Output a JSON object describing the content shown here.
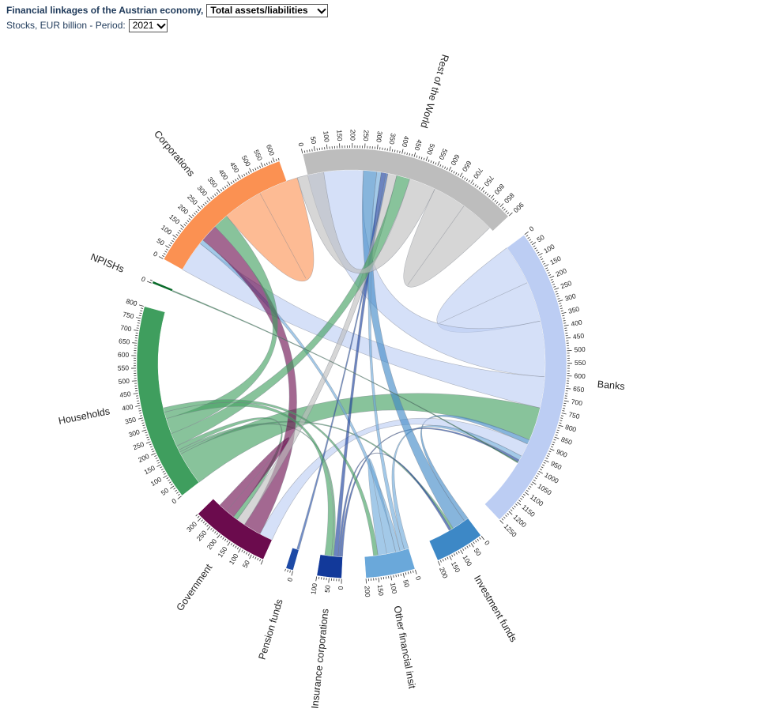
{
  "controls": {
    "title": "Financial linkages of the Austrian economy,",
    "metric_selected": "Total assets/liabilities",
    "subtitle": "Stocks, EUR billion - Period:",
    "period_selected": "2021"
  },
  "chart_data": {
    "type": "chord",
    "unit": "EUR billion",
    "sectors": [
      {
        "name": "Banks",
        "total": 1250,
        "color": "#bccdf3",
        "ticks": [
          0,
          50,
          100,
          150,
          200,
          250,
          300,
          350,
          400,
          450,
          500,
          550,
          600,
          650,
          700,
          750,
          800,
          850,
          900,
          950,
          1000,
          1050,
          1100,
          1150,
          1200,
          1250
        ]
      },
      {
        "name": "Investment funds",
        "total": 200,
        "color": "#3d88c6",
        "ticks": [
          0,
          50,
          100,
          150,
          200
        ]
      },
      {
        "name": "Other financial insit",
        "total": 200,
        "color": "#6aa8da",
        "ticks": [
          0,
          50,
          100,
          150,
          200
        ]
      },
      {
        "name": "Insurance corporations",
        "total": 100,
        "color": "#12399a",
        "ticks": [
          0,
          50,
          100
        ]
      },
      {
        "name": "Pension funds",
        "total": 30,
        "color": "#1d4aa6",
        "ticks": [
          0
        ]
      },
      {
        "name": "Government",
        "total": 320,
        "color": "#6b0b4d",
        "ticks": [
          50,
          100,
          150,
          200,
          250,
          300
        ]
      },
      {
        "name": "Households",
        "total": 800,
        "color": "#3f9e5e",
        "ticks": [
          0,
          50,
          100,
          150,
          200,
          250,
          300,
          350,
          400,
          450,
          500,
          550,
          600,
          650,
          700,
          750,
          800
        ]
      },
      {
        "name": "NPISHs",
        "total": 10,
        "color": "#0a6b2a",
        "ticks": [
          0
        ]
      },
      {
        "name": "Corporations",
        "total": 620,
        "color": "#fb9152",
        "ticks": [
          0,
          50,
          100,
          150,
          200,
          250,
          300,
          350,
          400,
          450,
          500,
          550,
          600
        ]
      },
      {
        "name": "Rest of the World",
        "total": 900,
        "color": "#bdbdbd",
        "ticks": [
          0,
          50,
          100,
          150,
          200,
          250,
          300,
          350,
          400,
          450,
          500,
          550,
          600,
          650,
          700,
          750,
          800,
          850,
          900
        ]
      }
    ],
    "links": [
      {
        "source": "Banks",
        "target": "Banks",
        "value": 180,
        "color": "#bccdf3"
      },
      {
        "source": "Banks",
        "target": "Rest of the World",
        "value": 250,
        "color": "#bccdf3"
      },
      {
        "source": "Banks",
        "target": "Corporations",
        "value": 140,
        "color": "#bccdf3"
      },
      {
        "source": "Banks",
        "target": "Households",
        "value": 150,
        "color": "#3f9e5e"
      },
      {
        "source": "Banks",
        "target": "Investment funds",
        "value": 20,
        "color": "#3d88c6"
      },
      {
        "source": "Banks",
        "target": "Government",
        "value": 60,
        "color": "#bccdf3"
      },
      {
        "source": "Banks",
        "target": "Other financial insit",
        "value": 20,
        "color": "#6aa8da"
      },
      {
        "source": "Banks",
        "target": "Insurance corporations",
        "value": 10,
        "color": "#12399a"
      },
      {
        "source": "Investment funds",
        "target": "Rest of the World",
        "value": 60,
        "color": "#3d88c6"
      },
      {
        "source": "Investment funds",
        "target": "Households",
        "value": 10,
        "color": "#3f9e5e"
      },
      {
        "source": "Investment funds",
        "target": "Insurance corporations",
        "value": 10,
        "color": "#12399a"
      },
      {
        "source": "Other financial insit",
        "target": "Rest of the World",
        "value": 20,
        "color": "#6aa8da"
      },
      {
        "source": "Other financial insit",
        "target": "Corporations",
        "value": 20,
        "color": "#6aa8da"
      },
      {
        "source": "Other financial insit",
        "target": "Other financial insit",
        "value": 40,
        "color": "#6aa8da"
      },
      {
        "source": "Insurance corporations",
        "target": "Rest of the World",
        "value": 20,
        "color": "#12399a"
      },
      {
        "source": "Insurance corporations",
        "target": "Households",
        "value": 10,
        "color": "#3f9e5e"
      },
      {
        "source": "Pension funds",
        "target": "Rest of the World",
        "value": 10,
        "color": "#1d4aa6"
      },
      {
        "source": "Government",
        "target": "Corporations",
        "value": 80,
        "color": "#6b0b4d"
      },
      {
        "source": "Government",
        "target": "Rest of the World",
        "value": 40,
        "color": "#bdbdbd"
      },
      {
        "source": "Government",
        "target": "Households",
        "value": 20,
        "color": "#3f9e5e"
      },
      {
        "source": "Government",
        "target": "Government",
        "value": 40,
        "color": "#6b0b4d"
      },
      {
        "source": "Households",
        "target": "Rest of the World",
        "value": 60,
        "color": "#3f9e5e"
      },
      {
        "source": "Households",
        "target": "Corporations",
        "value": 70,
        "color": "#3f9e5e"
      },
      {
        "source": "Households",
        "target": "Insurance corporations",
        "value": 30,
        "color": "#3f9e5e"
      },
      {
        "source": "Households",
        "target": "Other financial insit",
        "value": 20,
        "color": "#3f9e5e"
      },
      {
        "source": "NPISHs",
        "target": "Banks",
        "value": 5,
        "color": "#0a6b2a"
      },
      {
        "source": "Corporations",
        "target": "Corporations",
        "value": 180,
        "color": "#fb9152"
      },
      {
        "source": "Corporations",
        "target": "Rest of the World",
        "value": 120,
        "color": "#bdbdbd"
      },
      {
        "source": "Rest of the World",
        "target": "Rest of the World",
        "value": 150,
        "color": "#bdbdbd"
      }
    ],
    "title": "Financial linkages of the Austrian economy",
    "legend": "none",
    "grid": false
  }
}
